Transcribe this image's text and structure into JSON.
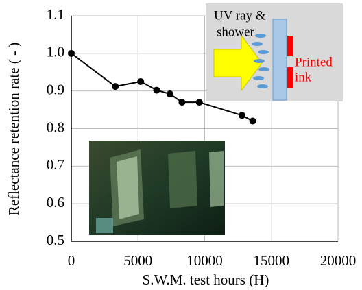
{
  "chart_data": {
    "type": "line",
    "x_label": "S.W.M. test hours (H)",
    "y_label": "Reflectance retention rate ( - )",
    "x": [
      0,
      3300,
      5200,
      6400,
      7400,
      8300,
      9600,
      12800,
      13600
    ],
    "values": [
      1.0,
      0.912,
      0.925,
      0.902,
      0.892,
      0.87,
      0.87,
      0.835,
      0.82
    ],
    "color": "#000000",
    "xlim": [
      0,
      20000
    ],
    "xticks": [
      0,
      5000,
      10000,
      15000,
      20000
    ],
    "ylim": [
      0.5,
      1.1
    ],
    "yticks": [
      0.5,
      0.6,
      0.7,
      0.8,
      0.9,
      {
        "value": 1,
        "label": "1.0"
      },
      1.1
    ],
    "grid": true,
    "annotations": [
      "UV ray &",
      "shower",
      "Printed",
      "ink"
    ]
  }
}
